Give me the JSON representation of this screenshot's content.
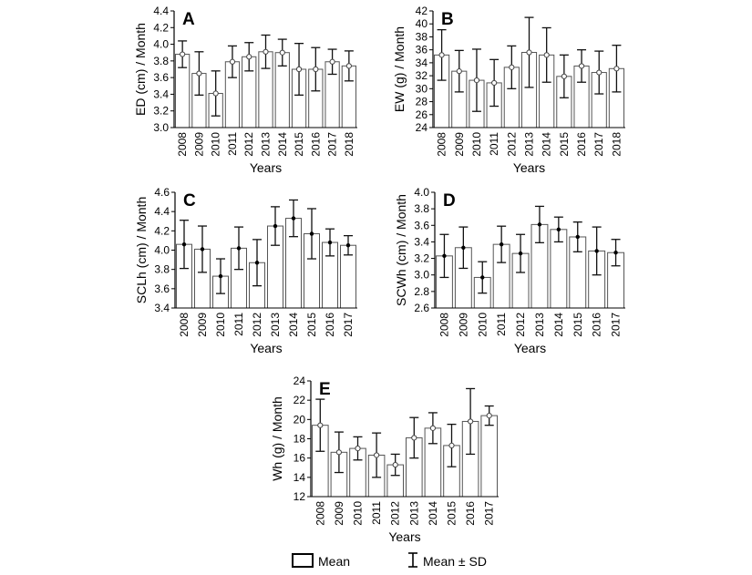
{
  "chart_data": [
    {
      "type": "bar",
      "panel": "A",
      "categories": [
        "2008",
        "2009",
        "2010",
        "2011",
        "2012",
        "2013",
        "2014",
        "2015",
        "2016",
        "2017",
        "2018"
      ],
      "values": [
        3.88,
        3.65,
        3.41,
        3.79,
        3.85,
        3.91,
        3.9,
        3.7,
        3.7,
        3.79,
        3.74
      ],
      "sd": [
        0.16,
        0.26,
        0.27,
        0.19,
        0.17,
        0.2,
        0.16,
        0.31,
        0.26,
        0.15,
        0.18
      ],
      "mean_marker": "open",
      "xlabel": "Years",
      "ylabel": "ED (cm) / Month",
      "ylim": [
        3.0,
        4.4
      ],
      "yticks": [
        "3.0",
        "3.2",
        "3.4",
        "3.6",
        "3.8",
        "4.0",
        "4.2",
        "4.4"
      ]
    },
    {
      "type": "bar",
      "panel": "B",
      "categories": [
        "2008",
        "2009",
        "2010",
        "2011",
        "2012",
        "2013",
        "2014",
        "2015",
        "2016",
        "2017",
        "2018"
      ],
      "values": [
        35.2,
        32.7,
        31.3,
        30.9,
        33.3,
        35.6,
        35.2,
        31.9,
        33.5,
        32.5,
        33.1
      ],
      "sd": [
        3.9,
        3.2,
        4.8,
        3.6,
        3.3,
        5.4,
        4.2,
        3.3,
        2.5,
        3.3,
        3.6
      ],
      "mean_marker": "open",
      "xlabel": "Years",
      "ylabel": "EW (g) / Month",
      "ylim": [
        24,
        42
      ],
      "yticks": [
        "24",
        "26",
        "28",
        "30",
        "32",
        "34",
        "36",
        "38",
        "40",
        "42"
      ]
    },
    {
      "type": "bar",
      "panel": "C",
      "categories": [
        "2008",
        "2009",
        "2010",
        "2011",
        "2012",
        "2013",
        "2014",
        "2015",
        "2016",
        "2017"
      ],
      "values": [
        4.06,
        4.01,
        3.73,
        4.02,
        3.87,
        4.25,
        4.33,
        4.17,
        4.08,
        4.05
      ],
      "sd": [
        0.25,
        0.24,
        0.18,
        0.22,
        0.24,
        0.2,
        0.19,
        0.26,
        0.14,
        0.1
      ],
      "mean_marker": "filled",
      "xlabel": "Years",
      "ylabel": "SCLh (cm) / Month",
      "ylim": [
        3.4,
        4.6
      ],
      "yticks": [
        "3.4",
        "3.6",
        "3.8",
        "4.0",
        "4.2",
        "4.4",
        "4.6"
      ]
    },
    {
      "type": "bar",
      "panel": "D",
      "categories": [
        "2008",
        "2009",
        "2010",
        "2011",
        "2012",
        "2013",
        "2014",
        "2015",
        "2016",
        "2017"
      ],
      "values": [
        3.23,
        3.33,
        2.97,
        3.37,
        3.26,
        3.61,
        3.55,
        3.46,
        3.29,
        3.27
      ],
      "sd": [
        0.26,
        0.25,
        0.19,
        0.22,
        0.23,
        0.22,
        0.15,
        0.18,
        0.29,
        0.16
      ],
      "mean_marker": "filled",
      "xlabel": "Years",
      "ylabel": "SCWh (cm) / Month",
      "ylim": [
        2.6,
        4.0
      ],
      "yticks": [
        "2.6",
        "2.8",
        "3.0",
        "3.2",
        "3.4",
        "3.6",
        "3.8",
        "4.0"
      ]
    },
    {
      "type": "bar",
      "panel": "E",
      "categories": [
        "2008",
        "2009",
        "2010",
        "2011",
        "2012",
        "2013",
        "2014",
        "2015",
        "2016",
        "2017"
      ],
      "values": [
        19.4,
        16.6,
        17.0,
        16.3,
        15.3,
        18.1,
        19.1,
        17.3,
        19.8,
        20.4
      ],
      "sd": [
        2.7,
        2.1,
        1.2,
        2.3,
        1.1,
        2.1,
        1.6,
        2.2,
        3.4,
        1.0
      ],
      "mean_marker": "open",
      "xlabel": "Years",
      "ylabel": "Wh (g) / Month",
      "ylim": [
        12,
        24
      ],
      "yticks": [
        "12",
        "14",
        "16",
        "18",
        "20",
        "22",
        "24"
      ]
    }
  ],
  "legend": {
    "mean_label": "Mean",
    "sd_label": "Mean ± SD"
  }
}
